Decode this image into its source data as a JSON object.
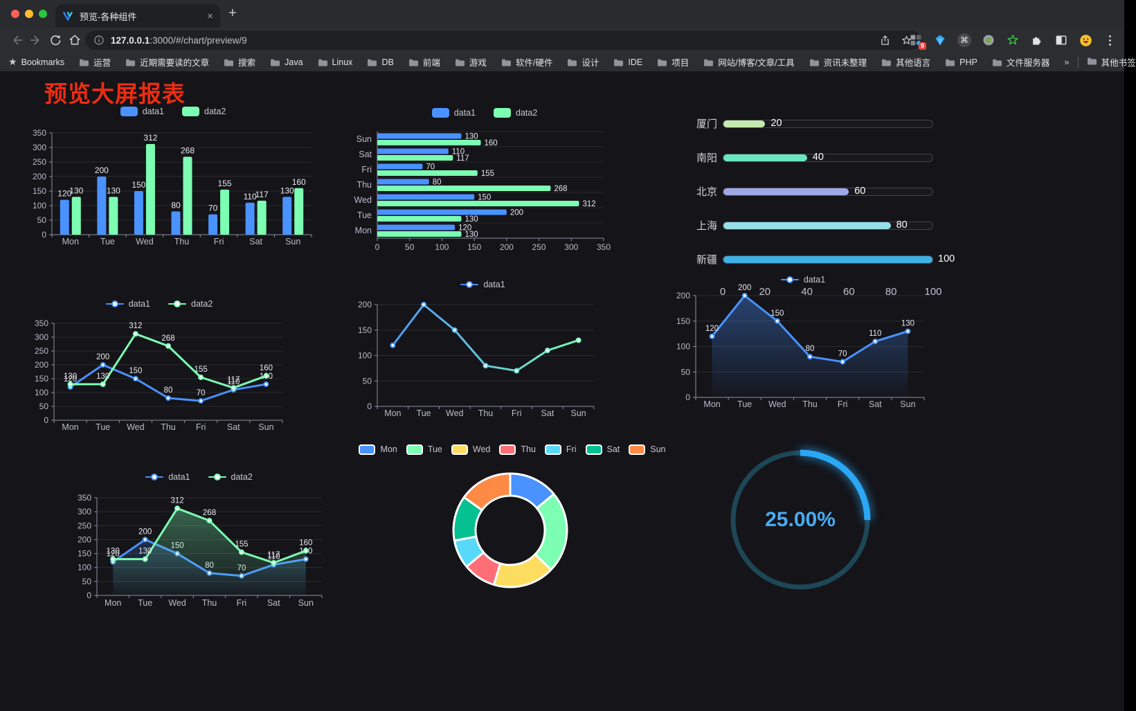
{
  "browser": {
    "tab_title": "预览-各种组件",
    "url_host": "127.0.0.1",
    "url_path": ":3000/#/chart/preview/9",
    "bookmarks_root": "Bookmarks",
    "bookmark_folders": [
      "运营",
      "近期需要读的文章",
      "搜索",
      "Java",
      "Linux",
      "DB",
      "前端",
      "游戏",
      "软件/硬件",
      "设计",
      "IDE",
      "项目",
      "网站/博客/文章/工具",
      "资讯未整理",
      "其他语言",
      "PHP",
      "文件服务器"
    ],
    "bookmarks_overflow": "»",
    "other_bookmarks": "其他书签",
    "extension_badge": "9"
  },
  "page": {
    "title": "预览大屏报表",
    "title_color": "#ee2c11"
  },
  "chart_data": [
    {
      "id": "grouped-bar-vertical",
      "type": "bar",
      "categories": [
        "Mon",
        "Tue",
        "Wed",
        "Thu",
        "Fri",
        "Sat",
        "Sun"
      ],
      "series": [
        {
          "name": "data1",
          "color": "#4992ff",
          "values": [
            120,
            200,
            150,
            80,
            70,
            110,
            130
          ]
        },
        {
          "name": "data2",
          "color": "#7cffb2",
          "values": [
            130,
            130,
            312,
            268,
            155,
            117,
            160
          ]
        }
      ],
      "ylim": [
        0,
        350
      ],
      "ytick_step": 50,
      "grid": true,
      "legend_position": "top",
      "show_labels": true
    },
    {
      "id": "grouped-bar-horizontal",
      "type": "bar",
      "orientation": "horizontal",
      "categories_top_to_bottom": [
        "Sun",
        "Sat",
        "Fri",
        "Thu",
        "Wed",
        "Tue",
        "Mon"
      ],
      "series": [
        {
          "name": "data1",
          "color": "#4992ff",
          "values": [
            130,
            110,
            70,
            80,
            150,
            200,
            120
          ]
        },
        {
          "name": "data2",
          "color": "#7cffb2",
          "values": [
            160,
            117,
            155,
            268,
            312,
            130,
            130
          ]
        }
      ],
      "xlim": [
        0,
        350
      ],
      "xtick_step": 50,
      "legend_position": "top",
      "show_labels": true
    },
    {
      "id": "city-progress-bars",
      "type": "bar",
      "orientation": "horizontal-progress",
      "items": [
        {
          "label": "厦门",
          "value": 20,
          "color": "#c4ebad"
        },
        {
          "label": "南阳",
          "value": 40,
          "color": "#6be6c1"
        },
        {
          "label": "北京",
          "value": 60,
          "color": "#a0a7e6"
        },
        {
          "label": "上海",
          "value": 80,
          "color": "#96dee8"
        },
        {
          "label": "新疆",
          "value": 100,
          "color": "#3fb1e3"
        }
      ],
      "xlim": [
        0,
        100
      ],
      "xticks": [
        0,
        20,
        40,
        60,
        80,
        100
      ]
    },
    {
      "id": "line-two-series",
      "type": "line",
      "categories": [
        "Mon",
        "Tue",
        "Wed",
        "Thu",
        "Fri",
        "Sat",
        "Sun"
      ],
      "series": [
        {
          "name": "data1",
          "color": "#4992ff",
          "values": [
            120,
            200,
            150,
            80,
            70,
            110,
            130
          ]
        },
        {
          "name": "data2",
          "color": "#7cffb2",
          "values": [
            130,
            130,
            312,
            268,
            155,
            117,
            160
          ]
        }
      ],
      "ylim": [
        0,
        350
      ],
      "ytick_step": 50,
      "show_labels": true
    },
    {
      "id": "line-gradient-single",
      "type": "line",
      "categories": [
        "Mon",
        "Tue",
        "Wed",
        "Thu",
        "Fri",
        "Sat",
        "Sun"
      ],
      "series": [
        {
          "name": "data1",
          "gradient": [
            "#4992ff",
            "#7cffb2"
          ],
          "values": [
            120,
            200,
            150,
            80,
            70,
            110,
            130
          ]
        }
      ],
      "ylim": [
        0,
        200
      ],
      "ytick_step": 50,
      "show_labels": false
    },
    {
      "id": "area-single",
      "type": "area",
      "categories": [
        "Mon",
        "Tue",
        "Wed",
        "Thu",
        "Fri",
        "Sat",
        "Sun"
      ],
      "series": [
        {
          "name": "data1",
          "color": "#4992ff",
          "area": true,
          "values": [
            120,
            200,
            150,
            80,
            70,
            110,
            130
          ]
        }
      ],
      "ylim": [
        0,
        200
      ],
      "ytick_step": 50,
      "show_labels": true
    },
    {
      "id": "line-area-two-series",
      "type": "area",
      "categories": [
        "Mon",
        "Tue",
        "Wed",
        "Thu",
        "Fri",
        "Sat",
        "Sun"
      ],
      "series": [
        {
          "name": "data1",
          "color": "#4992ff",
          "area": true,
          "values": [
            120,
            200,
            150,
            80,
            70,
            110,
            130
          ]
        },
        {
          "name": "data2",
          "color": "#7cffb2",
          "area": true,
          "values": [
            130,
            130,
            312,
            268,
            155,
            117,
            160
          ]
        }
      ],
      "ylim": [
        0,
        350
      ],
      "ytick_step": 50,
      "show_labels": true
    },
    {
      "id": "donut-days",
      "type": "pie",
      "labels": [
        "Mon",
        "Tue",
        "Wed",
        "Thu",
        "Fri",
        "Sat",
        "Sun"
      ],
      "values": [
        120,
        200,
        150,
        80,
        70,
        110,
        130
      ],
      "colors": [
        "#4992ff",
        "#7cffb2",
        "#fddd60",
        "#ff6e76",
        "#58d9f9",
        "#05c091",
        "#ff8a45"
      ],
      "inner_radius_ratio": 0.61,
      "legend_position": "top"
    },
    {
      "id": "gauge-percent",
      "type": "gauge",
      "percent": 25,
      "value_label": "25.00%",
      "color": "#2aa7f5",
      "track_color": "#1d4756"
    }
  ]
}
